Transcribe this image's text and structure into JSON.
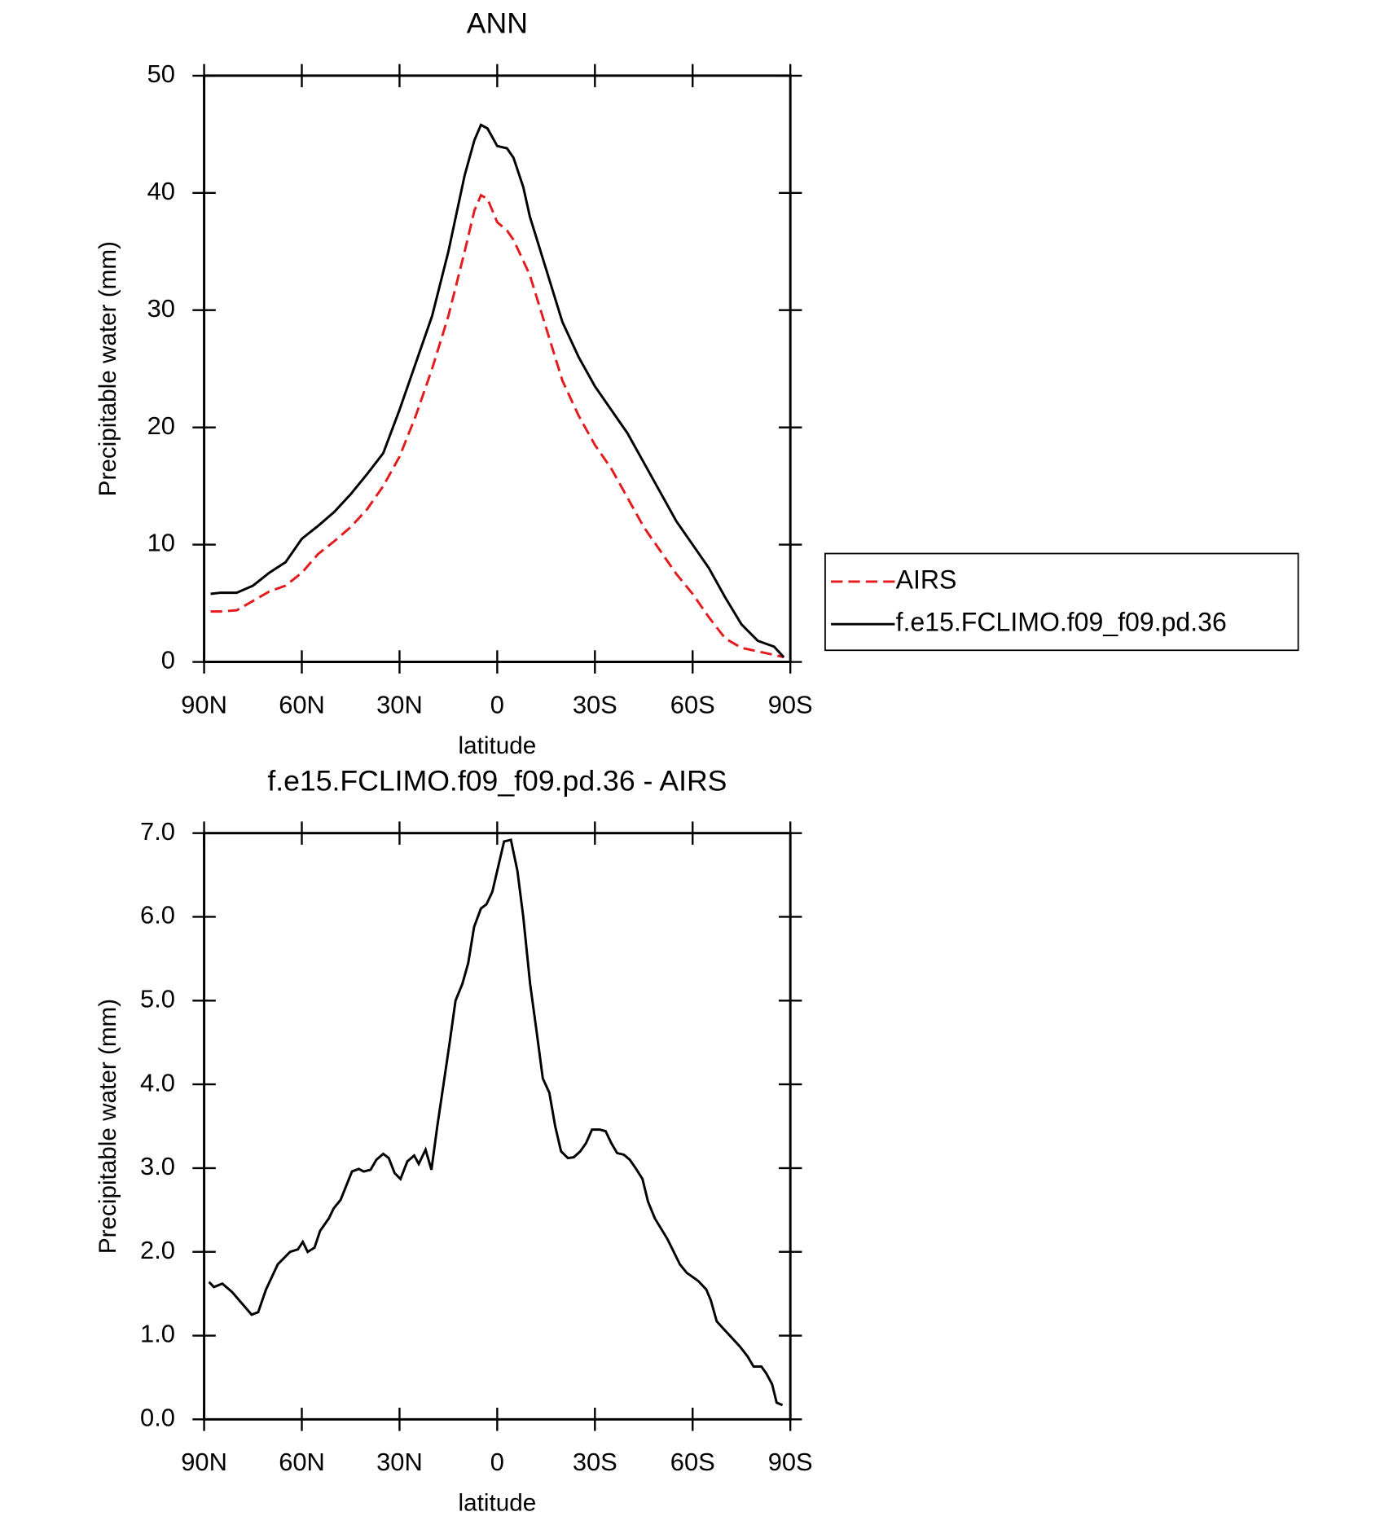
{
  "chart_data": [
    {
      "type": "line",
      "title": "ANN",
      "x_label": "latitude",
      "y_label": "Precipitable water (mm)",
      "xlim": [
        90,
        -90
      ],
      "xticks": [
        {
          "value": 90,
          "label": "90N"
        },
        {
          "value": 60,
          "label": "60N"
        },
        {
          "value": 30,
          "label": "30N"
        },
        0,
        {
          "value": -30,
          "label": "30S"
        },
        {
          "value": -60,
          "label": "60S"
        },
        {
          "value": -90,
          "label": "90S"
        }
      ],
      "ylim": [
        0,
        50
      ],
      "yticks": [
        0,
        10,
        20,
        30,
        40,
        50
      ],
      "legend": "right",
      "x": [
        88,
        85,
        80,
        75,
        70,
        65,
        60,
        55,
        50,
        45,
        40,
        35,
        30,
        25,
        20,
        15,
        10,
        7,
        5,
        3,
        0,
        -3,
        -5,
        -8,
        -10,
        -15,
        -20,
        -25,
        -30,
        -35,
        -40,
        -45,
        -50,
        -55,
        -60,
        -65,
        -70,
        -75,
        -80,
        -85,
        -88
      ],
      "series": [
        {
          "name": "AIRS",
          "color": "#e41a1c",
          "dashed": true,
          "values": [
            4.3,
            4.3,
            4.4,
            5.2,
            6.0,
            6.5,
            7.6,
            9.2,
            10.3,
            11.5,
            13.0,
            15.0,
            17.5,
            21.0,
            25.0,
            29.5,
            35.0,
            38.5,
            39.8,
            39.5,
            37.5,
            36.8,
            36.0,
            34.2,
            33.0,
            28.5,
            24.0,
            21.0,
            18.5,
            16.5,
            14.0,
            11.5,
            9.5,
            7.5,
            5.8,
            3.8,
            2.0,
            1.2,
            0.9,
            0.6,
            0.4
          ]
        },
        {
          "name": "f.e15.FCLIMO.f09_f09.pd.36",
          "color": "#000000",
          "dashed": false,
          "values": [
            5.8,
            5.9,
            5.9,
            6.5,
            7.6,
            8.5,
            10.5,
            11.6,
            12.8,
            14.3,
            16.0,
            17.8,
            21.5,
            25.5,
            29.5,
            35.0,
            41.5,
            44.5,
            45.8,
            45.5,
            44.0,
            43.8,
            43.0,
            40.5,
            38.0,
            33.5,
            29.0,
            26.0,
            23.5,
            21.5,
            19.5,
            17.0,
            14.5,
            12.0,
            10.0,
            8.0,
            5.5,
            3.2,
            1.8,
            1.3,
            0.4
          ]
        }
      ]
    },
    {
      "type": "line",
      "title": "f.e15.FCLIMO.f09_f09.pd.36 - AIRS",
      "x_label": "latitude",
      "y_label": "Precipitable water (mm)",
      "xlim": [
        90,
        -90
      ],
      "xticks": [
        {
          "value": 90,
          "label": "90N"
        },
        {
          "value": 60,
          "label": "60N"
        },
        {
          "value": 30,
          "label": "30N"
        },
        0,
        {
          "value": -30,
          "label": "30S"
        },
        {
          "value": -60,
          "label": "60S"
        },
        {
          "value": -90,
          "label": "90S"
        }
      ],
      "ylim": [
        0,
        7
      ],
      "yticks": [
        {
          "value": 0,
          "label": "0.0"
        },
        {
          "value": 1,
          "label": "1.0"
        },
        {
          "value": 2,
          "label": "2.0"
        },
        {
          "value": 3,
          "label": "3.0"
        },
        {
          "value": 4,
          "label": "4.0"
        },
        {
          "value": 5,
          "label": "5.0"
        },
        {
          "value": 6,
          "label": "6.0"
        },
        {
          "value": 7,
          "label": "7.0"
        }
      ],
      "color": "#000000",
      "x": [
        88.5,
        87.0,
        84.4,
        81.4,
        75.4,
        73.4,
        71.0,
        67.4,
        63.6,
        61.2,
        59.7,
        58.2,
        56.1,
        54.4,
        51.7,
        50.2,
        48.1,
        44.6,
        42.5,
        41.0,
        38.9,
        37.1,
        35.0,
        33.3,
        31.5,
        29.7,
        27.6,
        25.5,
        24.1,
        22.0,
        20.2,
        18.4,
        16.3,
        14.6,
        12.8,
        10.7,
        8.9,
        7.1,
        5.0,
        3.3,
        1.5,
        -0.3,
        -2.1,
        -4.2,
        -6.2,
        -8.0,
        -10.1,
        -12.2,
        -14.0,
        -16.0,
        -17.8,
        -19.6,
        -21.7,
        -23.5,
        -25.5,
        -27.3,
        -29.1,
        -31.5,
        -33.3,
        -35.0,
        -36.8,
        -38.9,
        -40.7,
        -42.5,
        -44.6,
        -46.3,
        -48.4,
        -52.3,
        -56.1,
        -58.2,
        -60.0,
        -61.8,
        -64.2,
        -65.6,
        -67.4,
        -69.5,
        -71.9,
        -74.5,
        -76.9,
        -78.7,
        -81.1,
        -82.6,
        -84.4,
        -85.8,
        -87.6
      ],
      "values": [
        1.64,
        1.58,
        1.62,
        1.52,
        1.25,
        1.28,
        1.55,
        1.85,
        2.0,
        2.03,
        2.12,
        2.0,
        2.05,
        2.25,
        2.4,
        2.52,
        2.62,
        2.96,
        2.99,
        2.96,
        2.98,
        3.1,
        3.17,
        3.12,
        2.94,
        2.87,
        3.08,
        3.15,
        3.05,
        3.22,
        2.98,
        3.5,
        4.05,
        4.5,
        5.0,
        5.2,
        5.45,
        5.88,
        6.1,
        6.15,
        6.3,
        6.6,
        6.9,
        6.92,
        6.55,
        6.0,
        5.2,
        4.6,
        4.07,
        3.9,
        3.5,
        3.2,
        3.12,
        3.13,
        3.2,
        3.3,
        3.46,
        3.46,
        3.44,
        3.3,
        3.18,
        3.16,
        3.1,
        3.0,
        2.87,
        2.6,
        2.4,
        2.15,
        1.85,
        1.75,
        1.7,
        1.65,
        1.55,
        1.42,
        1.17,
        1.08,
        0.98,
        0.87,
        0.75,
        0.63,
        0.63,
        0.55,
        0.42,
        0.2,
        0.17
      ]
    }
  ]
}
